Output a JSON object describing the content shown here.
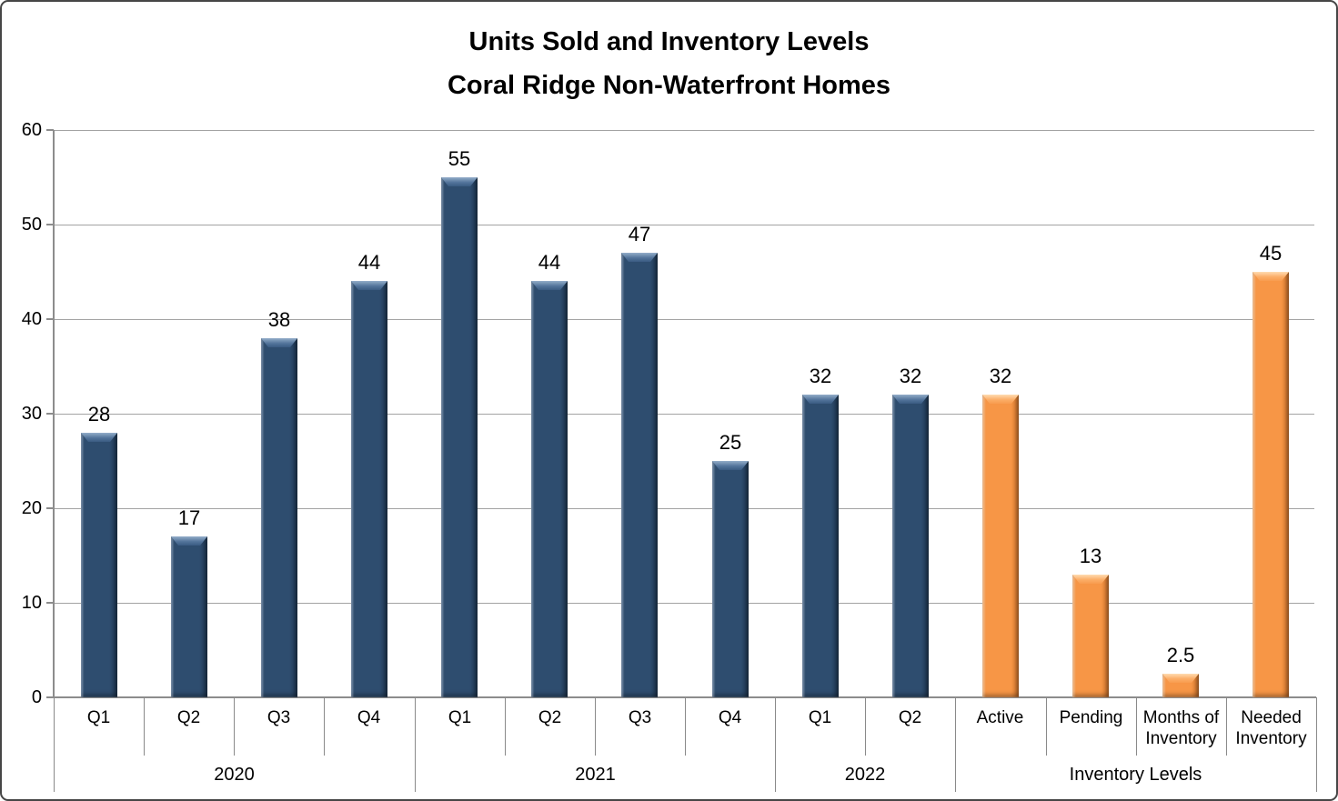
{
  "title": {
    "line1": "Units Sold and Inventory Levels",
    "line2": "Coral Ridge Non-Waterfront Homes"
  },
  "chart_data": {
    "type": "bar",
    "title": "Units Sold and Inventory Levels",
    "subtitle": "Coral Ridge Non-Waterfront Homes",
    "categories": [
      "Q1",
      "Q2",
      "Q3",
      "Q4",
      "Q1",
      "Q2",
      "Q3",
      "Q4",
      "Q1",
      "Q2",
      "Active",
      "Pending",
      "Months of Inventory",
      "Needed Inventory"
    ],
    "values": [
      28,
      17,
      38,
      44,
      55,
      44,
      47,
      25,
      32,
      32,
      32,
      13,
      2.5,
      45
    ],
    "value_labels": [
      "28",
      "17",
      "38",
      "44",
      "55",
      "44",
      "47",
      "25",
      "32",
      "32",
      "32",
      "13",
      "2.5",
      "45"
    ],
    "groups": [
      {
        "label": "2020",
        "start": 0,
        "count": 4
      },
      {
        "label": "2021",
        "start": 4,
        "count": 4
      },
      {
        "label": "2022",
        "start": 8,
        "count": 2
      },
      {
        "label": "Inventory Levels",
        "start": 10,
        "count": 4
      }
    ],
    "bar_color_keys": [
      "blue",
      "blue",
      "blue",
      "blue",
      "blue",
      "blue",
      "blue",
      "blue",
      "blue",
      "blue",
      "orange",
      "orange",
      "orange",
      "orange"
    ],
    "colors": {
      "blue": "#2E4D6F",
      "orange": "#F79646"
    },
    "xlabel": "",
    "ylabel": "",
    "ylim": [
      0,
      60
    ],
    "yticks": [
      0,
      10,
      20,
      30,
      40,
      50,
      60
    ],
    "grid": true,
    "legend": "none"
  }
}
